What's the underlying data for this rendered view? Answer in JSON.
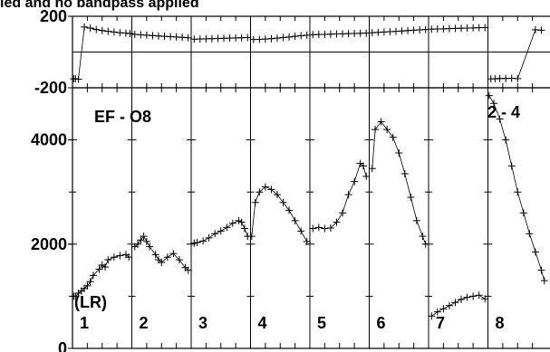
{
  "title_fragment": "ied and no bandpass applied",
  "baseline_label": "EF - O8",
  "polarization_label": "(LR)",
  "corner_label": "2 - 4",
  "chart_data": {
    "type": "scatter",
    "panels": [
      {
        "name": "phase",
        "ylim": [
          -200,
          200
        ],
        "yticks": [
          200,
          -200
        ]
      },
      {
        "name": "amplitude",
        "ylim": [
          0,
          5000
        ],
        "yticks": [
          4000,
          2000,
          0
        ]
      }
    ],
    "channels": [
      "1",
      "2",
      "3",
      "4",
      "5",
      "6",
      "7",
      "8"
    ],
    "phase_series": [
      {
        "ch": "1",
        "points": [
          [
            0.02,
            -150
          ],
          [
            0.05,
            -150
          ],
          [
            0.1,
            -152
          ],
          [
            0.2,
            140
          ],
          [
            0.3,
            134
          ],
          [
            0.4,
            126
          ],
          [
            0.5,
            120
          ],
          [
            0.6,
            116
          ],
          [
            0.7,
            112
          ],
          [
            0.8,
            108
          ],
          [
            0.9,
            106
          ],
          [
            0.97,
            104
          ]
        ]
      },
      {
        "ch": "2",
        "points": [
          [
            0.05,
            99
          ],
          [
            0.15,
            96
          ],
          [
            0.25,
            94
          ],
          [
            0.35,
            92
          ],
          [
            0.45,
            90
          ],
          [
            0.55,
            88
          ],
          [
            0.65,
            86
          ],
          [
            0.75,
            84
          ],
          [
            0.85,
            82
          ],
          [
            0.95,
            80
          ]
        ]
      },
      {
        "ch": "3",
        "points": [
          [
            0.05,
            72
          ],
          [
            0.15,
            73
          ],
          [
            0.25,
            74
          ],
          [
            0.35,
            75
          ],
          [
            0.45,
            76
          ],
          [
            0.55,
            77
          ],
          [
            0.65,
            78
          ],
          [
            0.75,
            79
          ],
          [
            0.85,
            80
          ],
          [
            0.95,
            81
          ]
        ]
      },
      {
        "ch": "4",
        "points": [
          [
            0.05,
            70
          ],
          [
            0.15,
            71
          ],
          [
            0.25,
            73
          ],
          [
            0.35,
            75
          ],
          [
            0.45,
            78
          ],
          [
            0.55,
            81
          ],
          [
            0.65,
            84
          ],
          [
            0.75,
            88
          ],
          [
            0.85,
            91
          ],
          [
            0.95,
            94
          ]
        ]
      },
      {
        "ch": "5",
        "points": [
          [
            0.05,
            97
          ],
          [
            0.15,
            98
          ],
          [
            0.25,
            99
          ],
          [
            0.35,
            100
          ],
          [
            0.45,
            101
          ],
          [
            0.55,
            102
          ],
          [
            0.65,
            103
          ],
          [
            0.75,
            104
          ],
          [
            0.85,
            105
          ],
          [
            0.95,
            106
          ]
        ]
      },
      {
        "ch": "6",
        "points": [
          [
            0.05,
            108
          ],
          [
            0.15,
            110
          ],
          [
            0.25,
            112
          ],
          [
            0.35,
            114
          ],
          [
            0.45,
            116
          ],
          [
            0.55,
            118
          ],
          [
            0.65,
            120
          ],
          [
            0.75,
            122
          ],
          [
            0.85,
            124
          ],
          [
            0.95,
            126
          ]
        ]
      },
      {
        "ch": "7",
        "points": [
          [
            0.05,
            128
          ],
          [
            0.15,
            129
          ],
          [
            0.25,
            130
          ],
          [
            0.35,
            131
          ],
          [
            0.45,
            132
          ],
          [
            0.55,
            133
          ],
          [
            0.65,
            134
          ],
          [
            0.75,
            135
          ],
          [
            0.85,
            136
          ],
          [
            0.95,
            137
          ]
        ]
      },
      {
        "ch": "8",
        "points": [
          [
            0.05,
            -150
          ],
          [
            0.12,
            -150
          ],
          [
            0.2,
            -148
          ],
          [
            0.3,
            -148
          ],
          [
            0.4,
            -147
          ],
          [
            0.5,
            -149
          ],
          [
            0.8,
            125
          ],
          [
            0.9,
            122
          ]
        ]
      }
    ],
    "amplitude_series": [
      {
        "ch": "1",
        "points": [
          [
            0.02,
            1000
          ],
          [
            0.05,
            1000
          ],
          [
            0.1,
            1060
          ],
          [
            0.15,
            1100
          ],
          [
            0.2,
            1150
          ],
          [
            0.25,
            1200
          ],
          [
            0.3,
            1280
          ],
          [
            0.35,
            1400
          ],
          [
            0.45,
            1520
          ],
          [
            0.5,
            1600
          ],
          [
            0.55,
            1560
          ],
          [
            0.6,
            1700
          ],
          [
            0.7,
            1750
          ],
          [
            0.8,
            1780
          ],
          [
            0.9,
            1800
          ],
          [
            0.95,
            1750
          ]
        ]
      },
      {
        "ch": "2",
        "points": [
          [
            0.05,
            1950
          ],
          [
            0.1,
            2000
          ],
          [
            0.15,
            2080
          ],
          [
            0.2,
            2150
          ],
          [
            0.25,
            2050
          ],
          [
            0.3,
            1950
          ],
          [
            0.4,
            1800
          ],
          [
            0.45,
            1700
          ],
          [
            0.5,
            1650
          ],
          [
            0.6,
            1750
          ],
          [
            0.7,
            1820
          ],
          [
            0.8,
            1700
          ],
          [
            0.9,
            1550
          ],
          [
            0.95,
            1500
          ]
        ]
      },
      {
        "ch": "3",
        "points": [
          [
            0.05,
            2020
          ],
          [
            0.1,
            2030
          ],
          [
            0.2,
            2060
          ],
          [
            0.3,
            2120
          ],
          [
            0.4,
            2200
          ],
          [
            0.5,
            2250
          ],
          [
            0.6,
            2320
          ],
          [
            0.7,
            2400
          ],
          [
            0.8,
            2450
          ],
          [
            0.85,
            2420
          ],
          [
            0.9,
            2300
          ],
          [
            0.95,
            2150
          ]
        ]
      },
      {
        "ch": "4",
        "points": [
          [
            0.02,
            2150
          ],
          [
            0.08,
            2800
          ],
          [
            0.15,
            3000
          ],
          [
            0.25,
            3100
          ],
          [
            0.35,
            3050
          ],
          [
            0.45,
            2950
          ],
          [
            0.55,
            2800
          ],
          [
            0.65,
            2650
          ],
          [
            0.75,
            2450
          ],
          [
            0.85,
            2250
          ],
          [
            0.95,
            2050
          ]
        ]
      },
      {
        "ch": "5",
        "points": [
          [
            0.05,
            2300
          ],
          [
            0.15,
            2320
          ],
          [
            0.25,
            2300
          ],
          [
            0.35,
            2310
          ],
          [
            0.45,
            2420
          ],
          [
            0.55,
            2600
          ],
          [
            0.65,
            2950
          ],
          [
            0.75,
            3200
          ],
          [
            0.85,
            3550
          ],
          [
            0.9,
            3500
          ],
          [
            0.95,
            3300
          ]
        ]
      },
      {
        "ch": "6",
        "points": [
          [
            0.05,
            3450
          ],
          [
            0.1,
            4200
          ],
          [
            0.2,
            4350
          ],
          [
            0.3,
            4200
          ],
          [
            0.4,
            4050
          ],
          [
            0.5,
            3750
          ],
          [
            0.6,
            3350
          ],
          [
            0.7,
            2900
          ],
          [
            0.8,
            2450
          ],
          [
            0.9,
            2150
          ],
          [
            0.95,
            2000
          ]
        ]
      },
      {
        "ch": "7",
        "points": [
          [
            0.05,
            620
          ],
          [
            0.15,
            700
          ],
          [
            0.25,
            760
          ],
          [
            0.35,
            820
          ],
          [
            0.45,
            880
          ],
          [
            0.55,
            940
          ],
          [
            0.65,
            980
          ],
          [
            0.75,
            1000
          ],
          [
            0.85,
            1020
          ],
          [
            0.95,
            950
          ]
        ]
      },
      {
        "ch": "8",
        "points": [
          [
            0.02,
            4850
          ],
          [
            0.1,
            4700
          ],
          [
            0.2,
            4400
          ],
          [
            0.3,
            4000
          ],
          [
            0.4,
            3500
          ],
          [
            0.5,
            3000
          ],
          [
            0.6,
            2600
          ],
          [
            0.7,
            2200
          ],
          [
            0.8,
            1850
          ],
          [
            0.9,
            1500
          ],
          [
            0.95,
            1300
          ]
        ]
      }
    ]
  }
}
